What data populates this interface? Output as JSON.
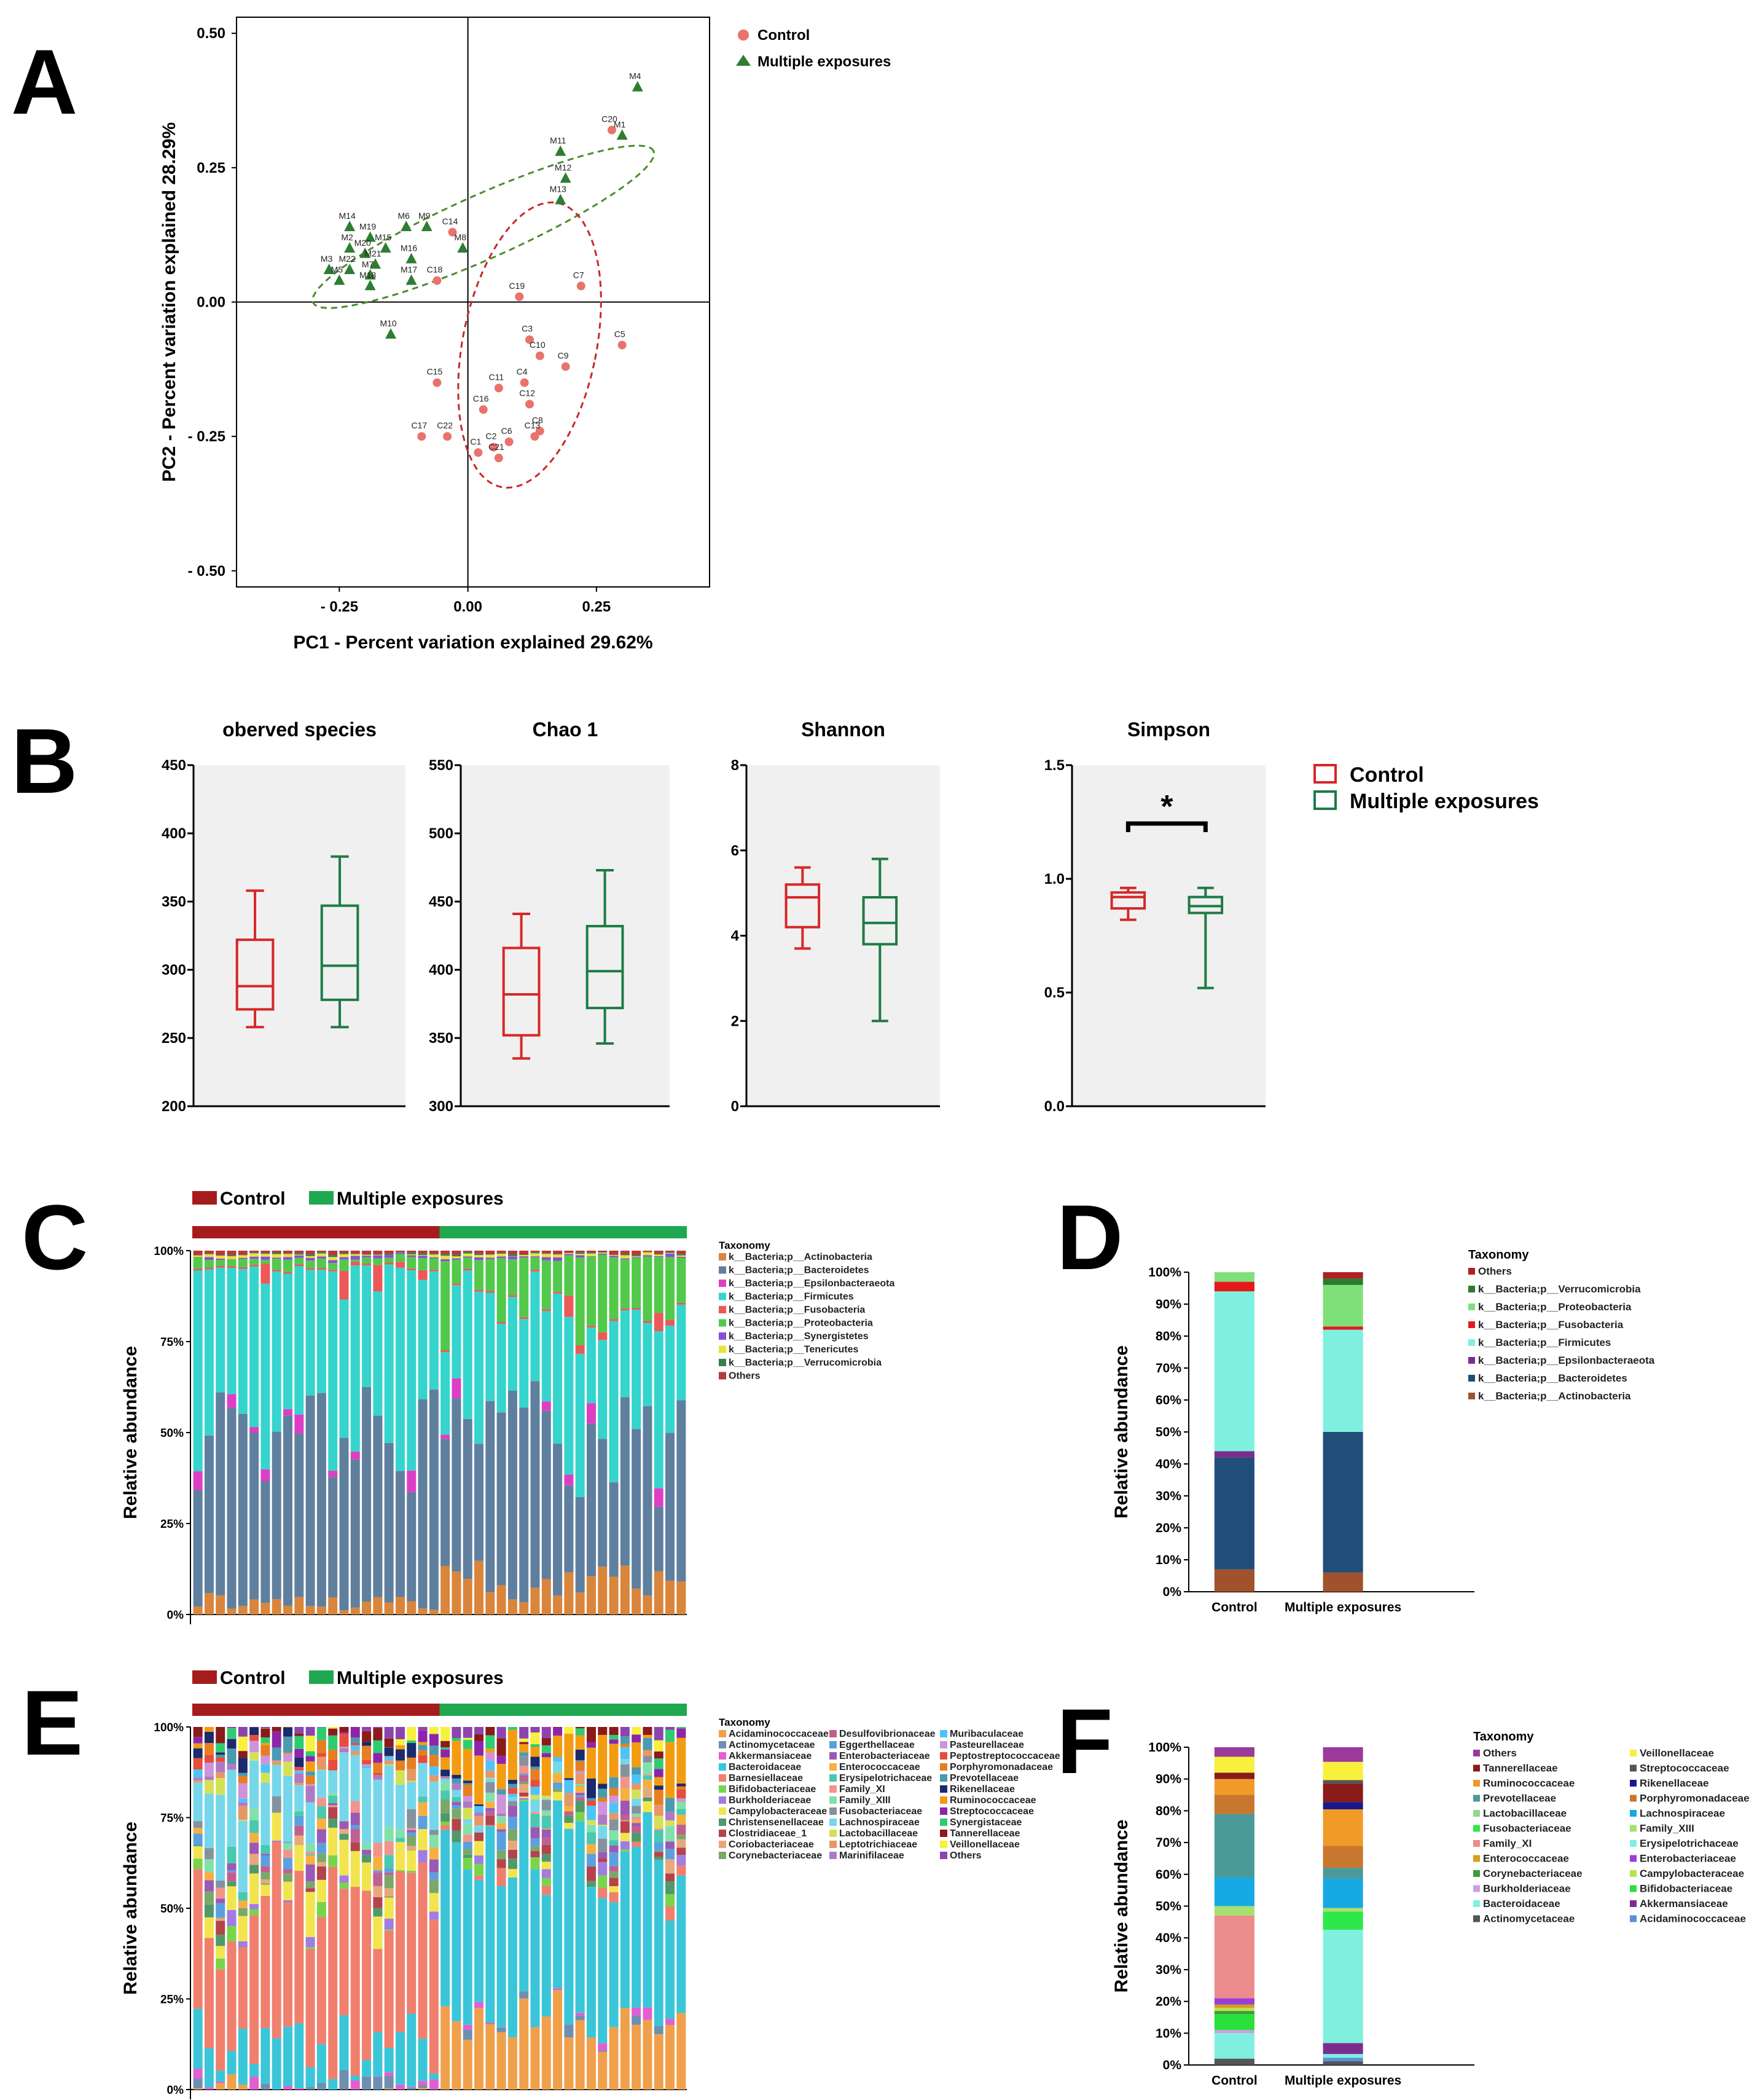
{
  "panel_labels": {
    "A": "A",
    "B": "B",
    "C": "C",
    "D": "D",
    "E": "E",
    "F": "F"
  },
  "colors": {
    "control": "#e8736c",
    "multiple": "#2e7d32",
    "box_control": "#d62728",
    "box_multiple": "#1e7b45",
    "ellipse_control": "#c62828",
    "ellipse_multiple": "#4a8c2a",
    "bar_control": "#a61c1c",
    "bar_multiple": "#1fa84f"
  },
  "chart_data": [
    {
      "id": "A",
      "type": "scatter",
      "xlabel": "PC1 - Percent variation explained 29.62%",
      "ylabel": "PC2 - Percent variation explained 28.29%",
      "xlim": [
        -0.45,
        0.47
      ],
      "ylim": [
        -0.53,
        0.53
      ],
      "xticks": [
        -0.25,
        0.0,
        0.25
      ],
      "xtick_labels": [
        "- 0.25",
        "0.00",
        "0.25"
      ],
      "yticks": [
        0.5,
        0.25,
        0.0,
        -0.25,
        -0.5
      ],
      "ytick_labels": [
        "0.50",
        "0.25",
        "0.00",
        "- 0.25",
        "- 0.50"
      ],
      "legend": [
        "Control",
        "Multiple exposures"
      ],
      "series": [
        {
          "name": "Control",
          "points": [
            {
              "label": "C20",
              "x": 0.28,
              "y": 0.32
            },
            {
              "label": "C14",
              "x": -0.03,
              "y": 0.13
            },
            {
              "label": "C18",
              "x": -0.06,
              "y": 0.04
            },
            {
              "label": "C19",
              "x": 0.1,
              "y": 0.01
            },
            {
              "label": "C7",
              "x": 0.22,
              "y": 0.03
            },
            {
              "label": "C5",
              "x": 0.3,
              "y": -0.08
            },
            {
              "label": "C3",
              "x": 0.12,
              "y": -0.07
            },
            {
              "label": "C10",
              "x": 0.14,
              "y": -0.1
            },
            {
              "label": "C9",
              "x": 0.19,
              "y": -0.12
            },
            {
              "label": "C11",
              "x": 0.06,
              "y": -0.16
            },
            {
              "label": "C4",
              "x": 0.11,
              "y": -0.15
            },
            {
              "label": "C15",
              "x": -0.06,
              "y": -0.15
            },
            {
              "label": "C12",
              "x": 0.12,
              "y": -0.19
            },
            {
              "label": "C16",
              "x": 0.03,
              "y": -0.2
            },
            {
              "label": "C8",
              "x": 0.14,
              "y": -0.24
            },
            {
              "label": "C22",
              "x": -0.04,
              "y": -0.25
            },
            {
              "label": "C6",
              "x": 0.08,
              "y": -0.26
            },
            {
              "label": "C2",
              "x": 0.05,
              "y": -0.27
            },
            {
              "label": "C17",
              "x": -0.09,
              "y": -0.25
            },
            {
              "label": "C13",
              "x": 0.13,
              "y": -0.25
            },
            {
              "label": "C1",
              "x": 0.02,
              "y": -0.28
            },
            {
              "label": "C21",
              "x": 0.06,
              "y": -0.29
            }
          ]
        },
        {
          "name": "Multiple exposures",
          "points": [
            {
              "label": "M4",
              "x": 0.33,
              "y": 0.4
            },
            {
              "label": "M1",
              "x": 0.3,
              "y": 0.31
            },
            {
              "label": "M11",
              "x": 0.18,
              "y": 0.28
            },
            {
              "label": "M12",
              "x": 0.19,
              "y": 0.23
            },
            {
              "label": "M13",
              "x": 0.18,
              "y": 0.19
            },
            {
              "label": "M14",
              "x": -0.23,
              "y": 0.14
            },
            {
              "label": "M19",
              "x": -0.19,
              "y": 0.12
            },
            {
              "label": "M6",
              "x": -0.12,
              "y": 0.14
            },
            {
              "label": "M9",
              "x": -0.08,
              "y": 0.14
            },
            {
              "label": "M15",
              "x": -0.16,
              "y": 0.1
            },
            {
              "label": "M20",
              "x": -0.2,
              "y": 0.09
            },
            {
              "label": "M2",
              "x": -0.23,
              "y": 0.1
            },
            {
              "label": "M21",
              "x": -0.18,
              "y": 0.07
            },
            {
              "label": "M16",
              "x": -0.11,
              "y": 0.08
            },
            {
              "label": "M8",
              "x": -0.01,
              "y": 0.1
            },
            {
              "label": "M3",
              "x": -0.27,
              "y": 0.06
            },
            {
              "label": "M22",
              "x": -0.23,
              "y": 0.06
            },
            {
              "label": "M7",
              "x": -0.19,
              "y": 0.05
            },
            {
              "label": "M5",
              "x": -0.25,
              "y": 0.04
            },
            {
              "label": "M18",
              "x": -0.19,
              "y": 0.03
            },
            {
              "label": "M17",
              "x": -0.11,
              "y": 0.04
            },
            {
              "label": "M10",
              "x": -0.15,
              "y": -0.06
            }
          ]
        }
      ]
    },
    {
      "id": "B",
      "type": "box",
      "legend": [
        "Control",
        "Multiple exposures"
      ],
      "significance": "*",
      "panels": [
        {
          "title": "oberved species",
          "ylim": [
            200,
            450
          ],
          "yticks": [
            200,
            250,
            300,
            350,
            400,
            450
          ],
          "boxes": [
            {
              "group": "Control",
              "min": 258,
              "q1": 271,
              "median": 288,
              "q3": 322,
              "max": 358
            },
            {
              "group": "Multiple exposures",
              "min": 258,
              "q1": 278,
              "median": 303,
              "q3": 347,
              "max": 383
            }
          ]
        },
        {
          "title": "Chao 1",
          "ylim": [
            300,
            550
          ],
          "yticks": [
            300,
            350,
            400,
            450,
            500,
            550
          ],
          "boxes": [
            {
              "group": "Control",
              "min": 335,
              "q1": 352,
              "median": 382,
              "q3": 416,
              "max": 441
            },
            {
              "group": "Multiple exposures",
              "min": 346,
              "q1": 372,
              "median": 399,
              "q3": 432,
              "max": 473
            }
          ]
        },
        {
          "title": "Shannon",
          "ylim": [
            0,
            8
          ],
          "yticks": [
            0,
            2,
            4,
            6,
            8
          ],
          "boxes": [
            {
              "group": "Control",
              "min": 3.7,
              "q1": 4.2,
              "median": 4.9,
              "q3": 5.2,
              "max": 5.6
            },
            {
              "group": "Multiple exposures",
              "min": 2.0,
              "q1": 3.8,
              "median": 4.3,
              "q3": 4.9,
              "max": 5.8
            }
          ]
        },
        {
          "title": "Simpson",
          "ylim": [
            0,
            1.5
          ],
          "yticks": [
            0.0,
            0.5,
            1.0,
            1.5
          ],
          "ytick_labels": [
            "0.0",
            "0.5",
            "1.0",
            "1.5"
          ],
          "sig": true,
          "boxes": [
            {
              "group": "Control",
              "min": 0.82,
              "q1": 0.87,
              "median": 0.92,
              "q3": 0.94,
              "max": 0.96
            },
            {
              "group": "Multiple exposures",
              "min": 0.52,
              "q1": 0.85,
              "median": 0.88,
              "q3": 0.92,
              "max": 0.96
            }
          ]
        }
      ]
    },
    {
      "id": "C",
      "type": "stacked-bar",
      "ylabel": "Relative abundance",
      "yticks": [
        "0%",
        "25%",
        "50%",
        "75%",
        "100%"
      ],
      "groups": [
        {
          "name": "Control",
          "count": 22
        },
        {
          "name": "Multiple exposures",
          "count": 22
        }
      ],
      "legend_title": "Taxonomy",
      "taxa": [
        {
          "name": "k__Bacteria;p__Actinobacteria",
          "color": "#d9853b"
        },
        {
          "name": "k__Bacteria;p__Bacteroidetes",
          "color": "#5f7f9e"
        },
        {
          "name": "k__Bacteria;p__Epsilonbacteraeota",
          "color": "#dd3fc4"
        },
        {
          "name": "k__Bacteria;p__Firmicutes",
          "color": "#35d4cd"
        },
        {
          "name": "k__Bacteria;p__Fusobacteria",
          "color": "#ec5959"
        },
        {
          "name": "k__Bacteria;p__Proteobacteria",
          "color": "#52c94b"
        },
        {
          "name": "k__Bacteria;p__Synergistetes",
          "color": "#8a4fd6"
        },
        {
          "name": "k__Bacteria;p__Tenericutes",
          "color": "#e9e338"
        },
        {
          "name": "k__Bacteria;p__Verrucomicrobia",
          "color": "#3a7d4f"
        },
        {
          "name": "Others",
          "color": "#b53a3a"
        }
      ]
    },
    {
      "id": "D",
      "type": "stacked-bar",
      "ylabel": "Relative abundance",
      "categories": [
        "Control",
        "Multiple exposures"
      ],
      "yticks": [
        "0%",
        "10%",
        "20%",
        "30%",
        "40%",
        "50%",
        "60%",
        "70%",
        "80%",
        "90%",
        "100%"
      ],
      "legend_title": "Taxonomy",
      "series": [
        {
          "name": "k__Bacteria;p__Actinobacteria",
          "color": "#a0522d",
          "values": [
            7,
            6
          ]
        },
        {
          "name": "k__Bacteria;p__Bacteroidetes",
          "color": "#1f4e79",
          "values": [
            35,
            44
          ]
        },
        {
          "name": "k__Bacteria;p__Epsilonbacteraeota",
          "color": "#7b2d8e",
          "values": [
            2,
            0
          ]
        },
        {
          "name": "k__Bacteria;p__Firmicutes",
          "color": "#7ff0e0",
          "values": [
            50,
            32
          ]
        },
        {
          "name": "k__Bacteria;p__Fusobacteria",
          "color": "#e31a1c",
          "values": [
            3,
            1
          ]
        },
        {
          "name": "k__Bacteria;p__Proteobacteria",
          "color": "#7fe07a",
          "values": [
            3,
            13
          ]
        },
        {
          "name": "k__Bacteria;p__Verrucomicrobia",
          "color": "#2c7a2c",
          "values": [
            0,
            2
          ]
        },
        {
          "name": "Others",
          "color": "#b01f24",
          "values": [
            0,
            2
          ]
        }
      ]
    },
    {
      "id": "E",
      "type": "stacked-bar",
      "ylabel": "Relative abundance",
      "yticks": [
        "0%",
        "25%",
        "50%",
        "75%",
        "100%"
      ],
      "groups": [
        {
          "name": "Control",
          "count": 22
        },
        {
          "name": "Multiple exposures",
          "count": 22
        }
      ],
      "legend_title": "Taxonomy",
      "taxa": [
        {
          "name": "Acidaminococcaceae",
          "color": "#f0a04b"
        },
        {
          "name": "Actinomycetaceae",
          "color": "#6f8fb0"
        },
        {
          "name": "Akkermansiaceae",
          "color": "#e25fd1"
        },
        {
          "name": "Bacteroidaceae",
          "color": "#3ac6d8"
        },
        {
          "name": "Barnesiellaceae",
          "color": "#f07f6e"
        },
        {
          "name": "Bifidobacteriaceae",
          "color": "#79d44a"
        },
        {
          "name": "Burkholderiaceae",
          "color": "#a27ce0"
        },
        {
          "name": "Campylobacteraceae",
          "color": "#f2e44e"
        },
        {
          "name": "Christensenellaceae",
          "color": "#4f9a6a"
        },
        {
          "name": "Clostridiaceae_1",
          "color": "#b5434c"
        },
        {
          "name": "Coriobacteriaceae",
          "color": "#e8a87c"
        },
        {
          "name": "Corynebacteriaceae",
          "color": "#7aa86a"
        },
        {
          "name": "Desulfovibrionaceae",
          "color": "#c06090"
        },
        {
          "name": "Eggerthellaceae",
          "color": "#5aa0e0"
        },
        {
          "name": "Enterobacteriaceae",
          "color": "#9b59b6"
        },
        {
          "name": "Enterococcaceae",
          "color": "#f5b041"
        },
        {
          "name": "Erysipelotrichaceae",
          "color": "#48c9b0"
        },
        {
          "name": "Family_XI",
          "color": "#f1948a"
        },
        {
          "name": "Family_XIII",
          "color": "#82e0aa"
        },
        {
          "name": "Fusobacteriaceae",
          "color": "#85929e"
        },
        {
          "name": "Lachnospiraceae",
          "color": "#76d7ea"
        },
        {
          "name": "Lactobacillaceae",
          "color": "#d4e157"
        },
        {
          "name": "Leptotrichiaceae",
          "color": "#e59866"
        },
        {
          "name": "Marinifilaceae",
          "color": "#af7ac5"
        },
        {
          "name": "Muribaculaceae",
          "color": "#4fc3f7"
        },
        {
          "name": "Pasteurellaceae",
          "color": "#ce93d8"
        },
        {
          "name": "Peptostreptococcaceae",
          "color": "#e74c3c"
        },
        {
          "name": "Porphyromonadaceae",
          "color": "#e67e22"
        },
        {
          "name": "Prevotellaceae",
          "color": "#4a9ab0"
        },
        {
          "name": "Rikenellaceae",
          "color": "#1a2a6c"
        },
        {
          "name": "Ruminococcaceae",
          "color": "#f39c12"
        },
        {
          "name": "Streptococcaceae",
          "color": "#8e24aa"
        },
        {
          "name": "Synergistaceae",
          "color": "#2ecc71"
        },
        {
          "name": "Tannerellaceae",
          "color": "#8b1a1a"
        },
        {
          "name": "Veillonellaceae",
          "color": "#f7f03c"
        },
        {
          "name": "Others",
          "color": "#8e44ad"
        }
      ]
    },
    {
      "id": "F",
      "type": "stacked-bar",
      "ylabel": "Relative abundance",
      "categories": [
        "Control",
        "Multiple exposures"
      ],
      "yticks": [
        "0%",
        "10%",
        "20%",
        "30%",
        "40%",
        "50%",
        "60%",
        "70%",
        "80%",
        "90%",
        "100%"
      ],
      "legend_title": "Taxonomy",
      "series": [
        {
          "name": "Actinomycetaceae",
          "color": "#555555",
          "values": [
            2,
            1
          ]
        },
        {
          "name": "Acidaminococcaceae",
          "color": "#5b8fd6",
          "values": [
            0,
            1
          ]
        },
        {
          "name": "Bacteroidaceae",
          "color": "#7ff0e0",
          "values": [
            8,
            1
          ]
        },
        {
          "name": "Akkermansiaceae",
          "color": "#7b2d8e",
          "values": [
            0,
            3
          ]
        },
        {
          "name": "Burkholderiaceae",
          "color": "#c9a0dc",
          "values": [
            1,
            0
          ]
        },
        {
          "name": "Bifidobacteriaceae",
          "color": "#29e03c",
          "values": [
            5,
            0
          ]
        },
        {
          "name": "Corynebacteriaceae",
          "color": "#3c9a3c",
          "values": [
            1,
            0
          ]
        },
        {
          "name": "Campylobacteraceae",
          "color": "#b9e34b",
          "values": [
            1,
            0
          ]
        },
        {
          "name": "Enterococcaceae",
          "color": "#d4a017",
          "values": [
            1,
            0
          ]
        },
        {
          "name": "Enterobacteriaceae",
          "color": "#9b3fd6",
          "values": [
            2,
            0
          ]
        },
        {
          "name": "Family_XI",
          "color": "#ec8c8c",
          "values": [
            26,
            0
          ]
        },
        {
          "name": "Erysipelotrichaceae",
          "color": "#7ff0e0",
          "values": [
            0,
            31
          ]
        },
        {
          "name": "Fusobacteriaceae",
          "color": "#2ee84a",
          "values": [
            0,
            5
          ]
        },
        {
          "name": "Family_XIII",
          "color": "#a8e070",
          "values": [
            3,
            1
          ]
        },
        {
          "name": "Lactobacillaceae",
          "color": "#8fd88f",
          "values": [
            0,
            0
          ]
        },
        {
          "name": "Lachnospiraceae",
          "color": "#17a9e3",
          "values": [
            9,
            8
          ]
        },
        {
          "name": "Prevotellaceae",
          "color": "#4a9a9a",
          "values": [
            20,
            3
          ]
        },
        {
          "name": "Porphyromonadaceae",
          "color": "#c8772e",
          "values": [
            6,
            6
          ]
        },
        {
          "name": "Ruminococcaceae",
          "color": "#f09a2a",
          "values": [
            5,
            10
          ]
        },
        {
          "name": "Rikenellaceae",
          "color": "#1a1a8c",
          "values": [
            0,
            2
          ]
        },
        {
          "name": "Tannerellaceae",
          "color": "#8b1a1a",
          "values": [
            2,
            5
          ]
        },
        {
          "name": "Streptococcaceae",
          "color": "#555555",
          "values": [
            0,
            1
          ]
        },
        {
          "name": "Veillonellaceae",
          "color": "#f7f03c",
          "values": [
            5,
            5
          ]
        },
        {
          "name": "Others",
          "color": "#9b3a9b",
          "values": [
            3,
            4
          ]
        }
      ]
    }
  ]
}
